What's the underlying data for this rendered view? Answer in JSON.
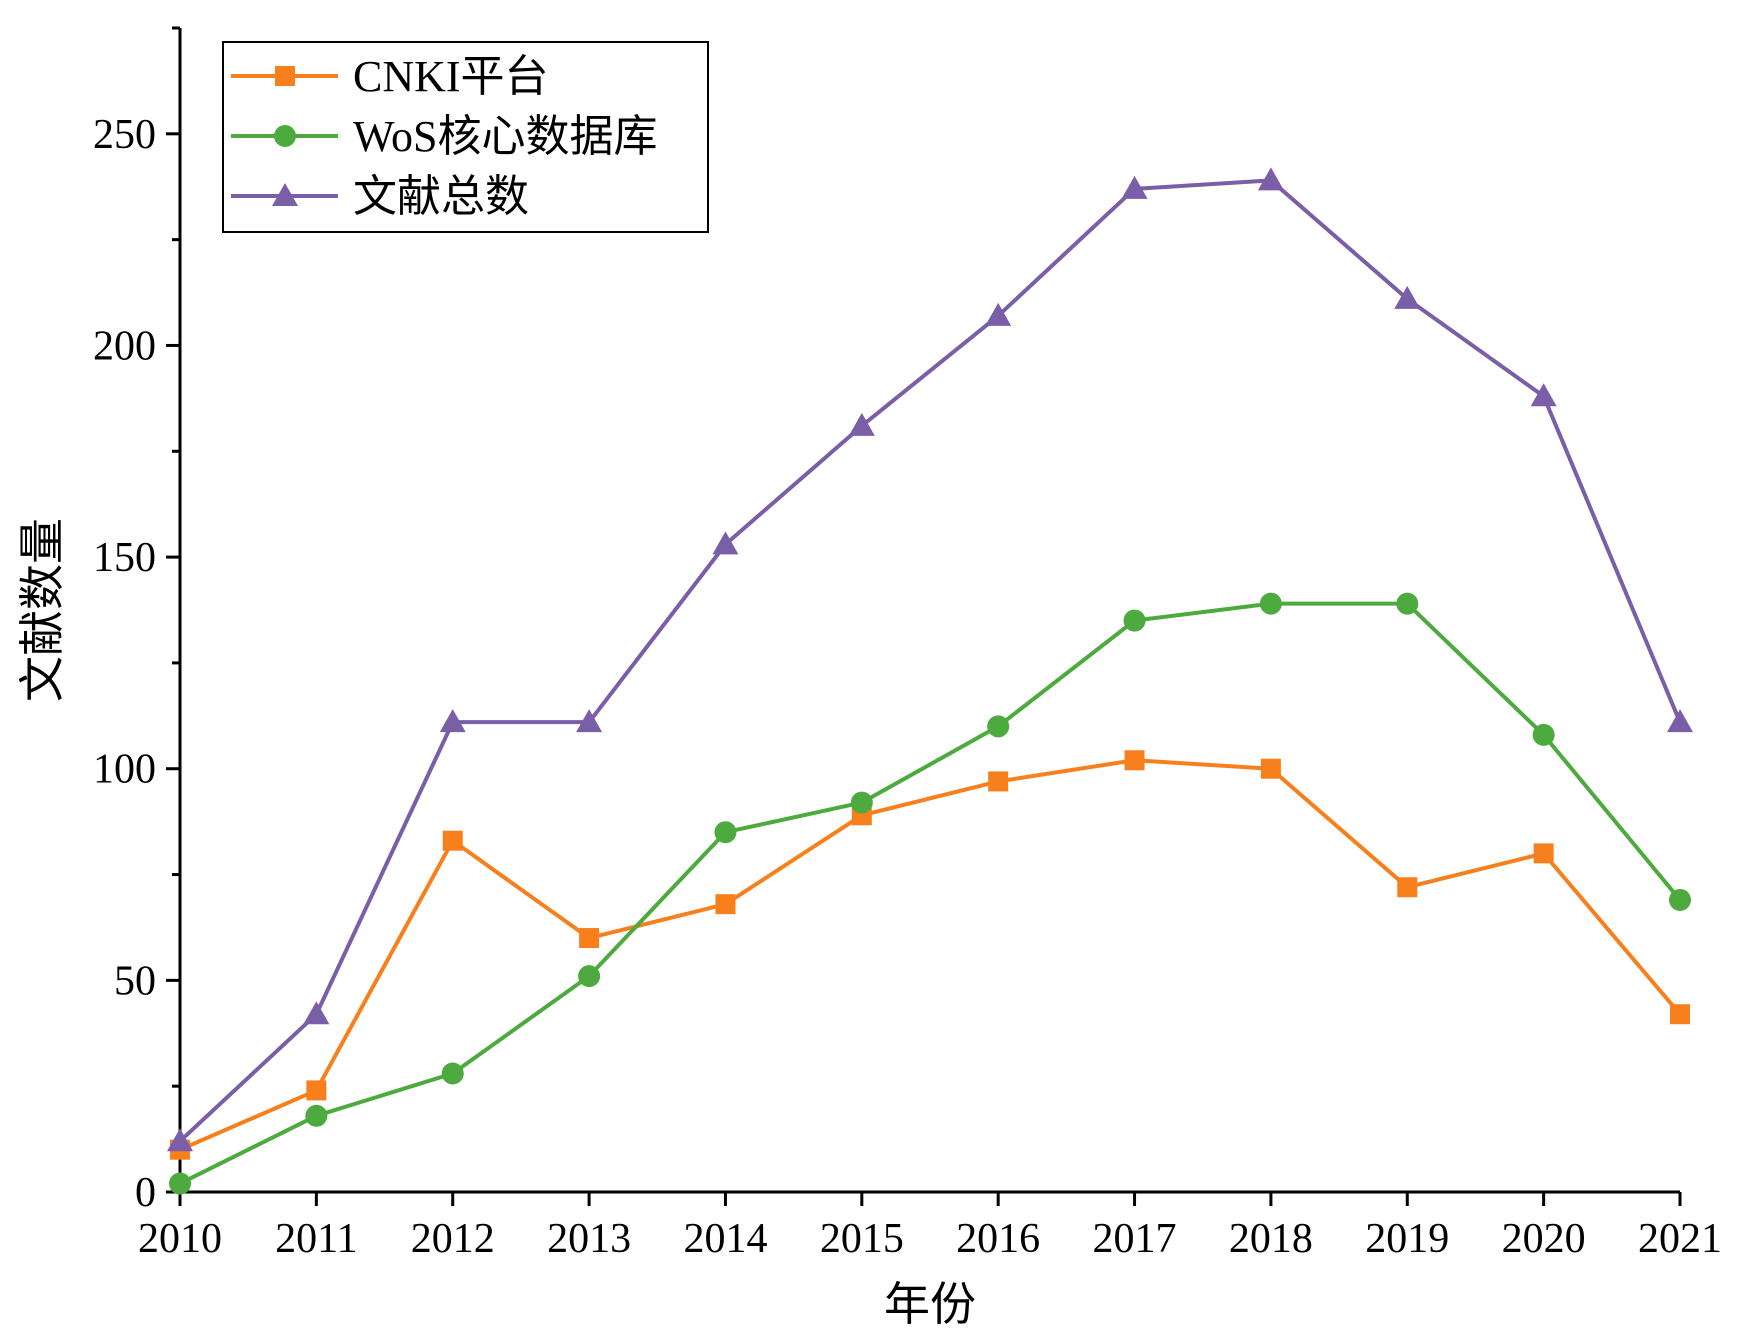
{
  "chart_data": {
    "type": "line",
    "title": "",
    "xlabel": "年份",
    "ylabel": "文献数量",
    "x": [
      2010,
      2011,
      2012,
      2013,
      2014,
      2015,
      2016,
      2017,
      2018,
      2019,
      2020,
      2021
    ],
    "xlim": [
      2010,
      2021
    ],
    "ylim": [
      0,
      275
    ],
    "yticks": [
      0,
      50,
      100,
      150,
      200,
      250
    ],
    "xtick_labels": [
      "2010",
      "2011",
      "2012",
      "2013",
      "2014",
      "2015",
      "2016",
      "2017",
      "2018",
      "2019",
      "2020",
      "2021"
    ],
    "ytick_labels": [
      "0",
      "50",
      "100",
      "150",
      "200",
      "250"
    ],
    "grid": false,
    "legend_position": "top-left",
    "series": [
      {
        "name": "CNKI平台",
        "color": "#f7801c",
        "marker": "square",
        "values": [
          10,
          24,
          83,
          60,
          68,
          89,
          97,
          102,
          100,
          72,
          80,
          42
        ]
      },
      {
        "name": "WoS核心数据库",
        "color": "#4daa3e",
        "marker": "circle",
        "values": [
          2,
          18,
          28,
          51,
          85,
          92,
          110,
          135,
          139,
          139,
          108,
          69
        ]
      },
      {
        "name": "文献总数",
        "color": "#7b5ea8",
        "marker": "triangle",
        "values": [
          12,
          42,
          111,
          111,
          153,
          181,
          207,
          237,
          239,
          211,
          188,
          111
        ]
      }
    ]
  }
}
